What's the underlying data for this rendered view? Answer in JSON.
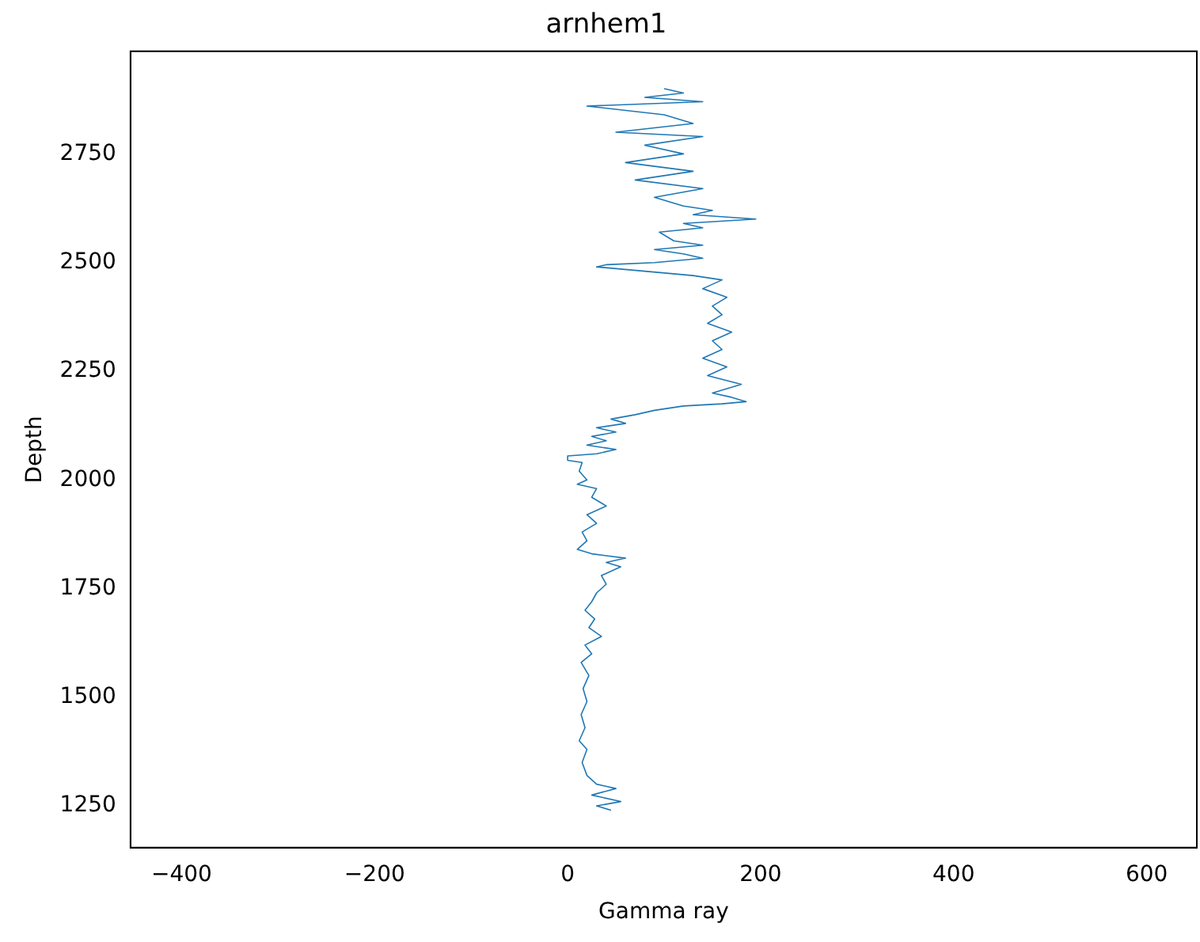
{
  "chart_data": {
    "type": "line",
    "title": "arnhem1",
    "xlabel": "Gamma ray",
    "ylabel": "Depth",
    "xlim": [
      -453,
      652
    ],
    "xticks": [
      -400,
      -200,
      0,
      200,
      400,
      600
    ],
    "ylim": [
      1154,
      2986
    ],
    "yticks": [
      1250,
      1500,
      1750,
      2000,
      2250,
      2500,
      2750
    ],
    "grid": false,
    "legend": false,
    "marker": "none",
    "line_style": "solid",
    "series": [
      {
        "color": "#1f77b4",
        "x": [
          45,
          30,
          55,
          25,
          50,
          30,
          20,
          15,
          20,
          12,
          18,
          14,
          20,
          16,
          22,
          14,
          25,
          18,
          35,
          22,
          28,
          18,
          25,
          30,
          40,
          35,
          55,
          40,
          60,
          25,
          10,
          20,
          15,
          30,
          20,
          40,
          25,
          30,
          10,
          20,
          12,
          15,
          0,
          0,
          30,
          50,
          20,
          40,
          25,
          50,
          30,
          60,
          45,
          70,
          90,
          120,
          160,
          185,
          170,
          150,
          180,
          145,
          165,
          140,
          160,
          150,
          170,
          145,
          160,
          150,
          165,
          140,
          160,
          130,
          80,
          30,
          40,
          90,
          140,
          120,
          90,
          140,
          110,
          95,
          140,
          120,
          195,
          130,
          150,
          120,
          90,
          140,
          70,
          130,
          60,
          120,
          80,
          140,
          50,
          130,
          100,
          20,
          140,
          80,
          120,
          100
        ],
        "values": [
          1240,
          1250,
          1260,
          1275,
          1290,
          1300,
          1320,
          1350,
          1380,
          1400,
          1430,
          1460,
          1490,
          1520,
          1550,
          1580,
          1600,
          1620,
          1640,
          1660,
          1680,
          1700,
          1720,
          1740,
          1760,
          1780,
          1800,
          1810,
          1820,
          1830,
          1840,
          1860,
          1880,
          1900,
          1920,
          1940,
          1960,
          1980,
          1990,
          2000,
          2020,
          2040,
          2045,
          2055,
          2060,
          2070,
          2080,
          2090,
          2100,
          2110,
          2120,
          2130,
          2140,
          2150,
          2160,
          2170,
          2175,
          2180,
          2190,
          2200,
          2220,
          2240,
          2260,
          2280,
          2300,
          2320,
          2340,
          2360,
          2380,
          2400,
          2420,
          2440,
          2460,
          2470,
          2480,
          2490,
          2495,
          2500,
          2510,
          2520,
          2530,
          2540,
          2550,
          2570,
          2580,
          2590,
          2600,
          2610,
          2620,
          2630,
          2650,
          2670,
          2690,
          2710,
          2730,
          2750,
          2770,
          2790,
          2800,
          2820,
          2840,
          2860,
          2870,
          2880,
          2890,
          2900
        ]
      }
    ]
  }
}
